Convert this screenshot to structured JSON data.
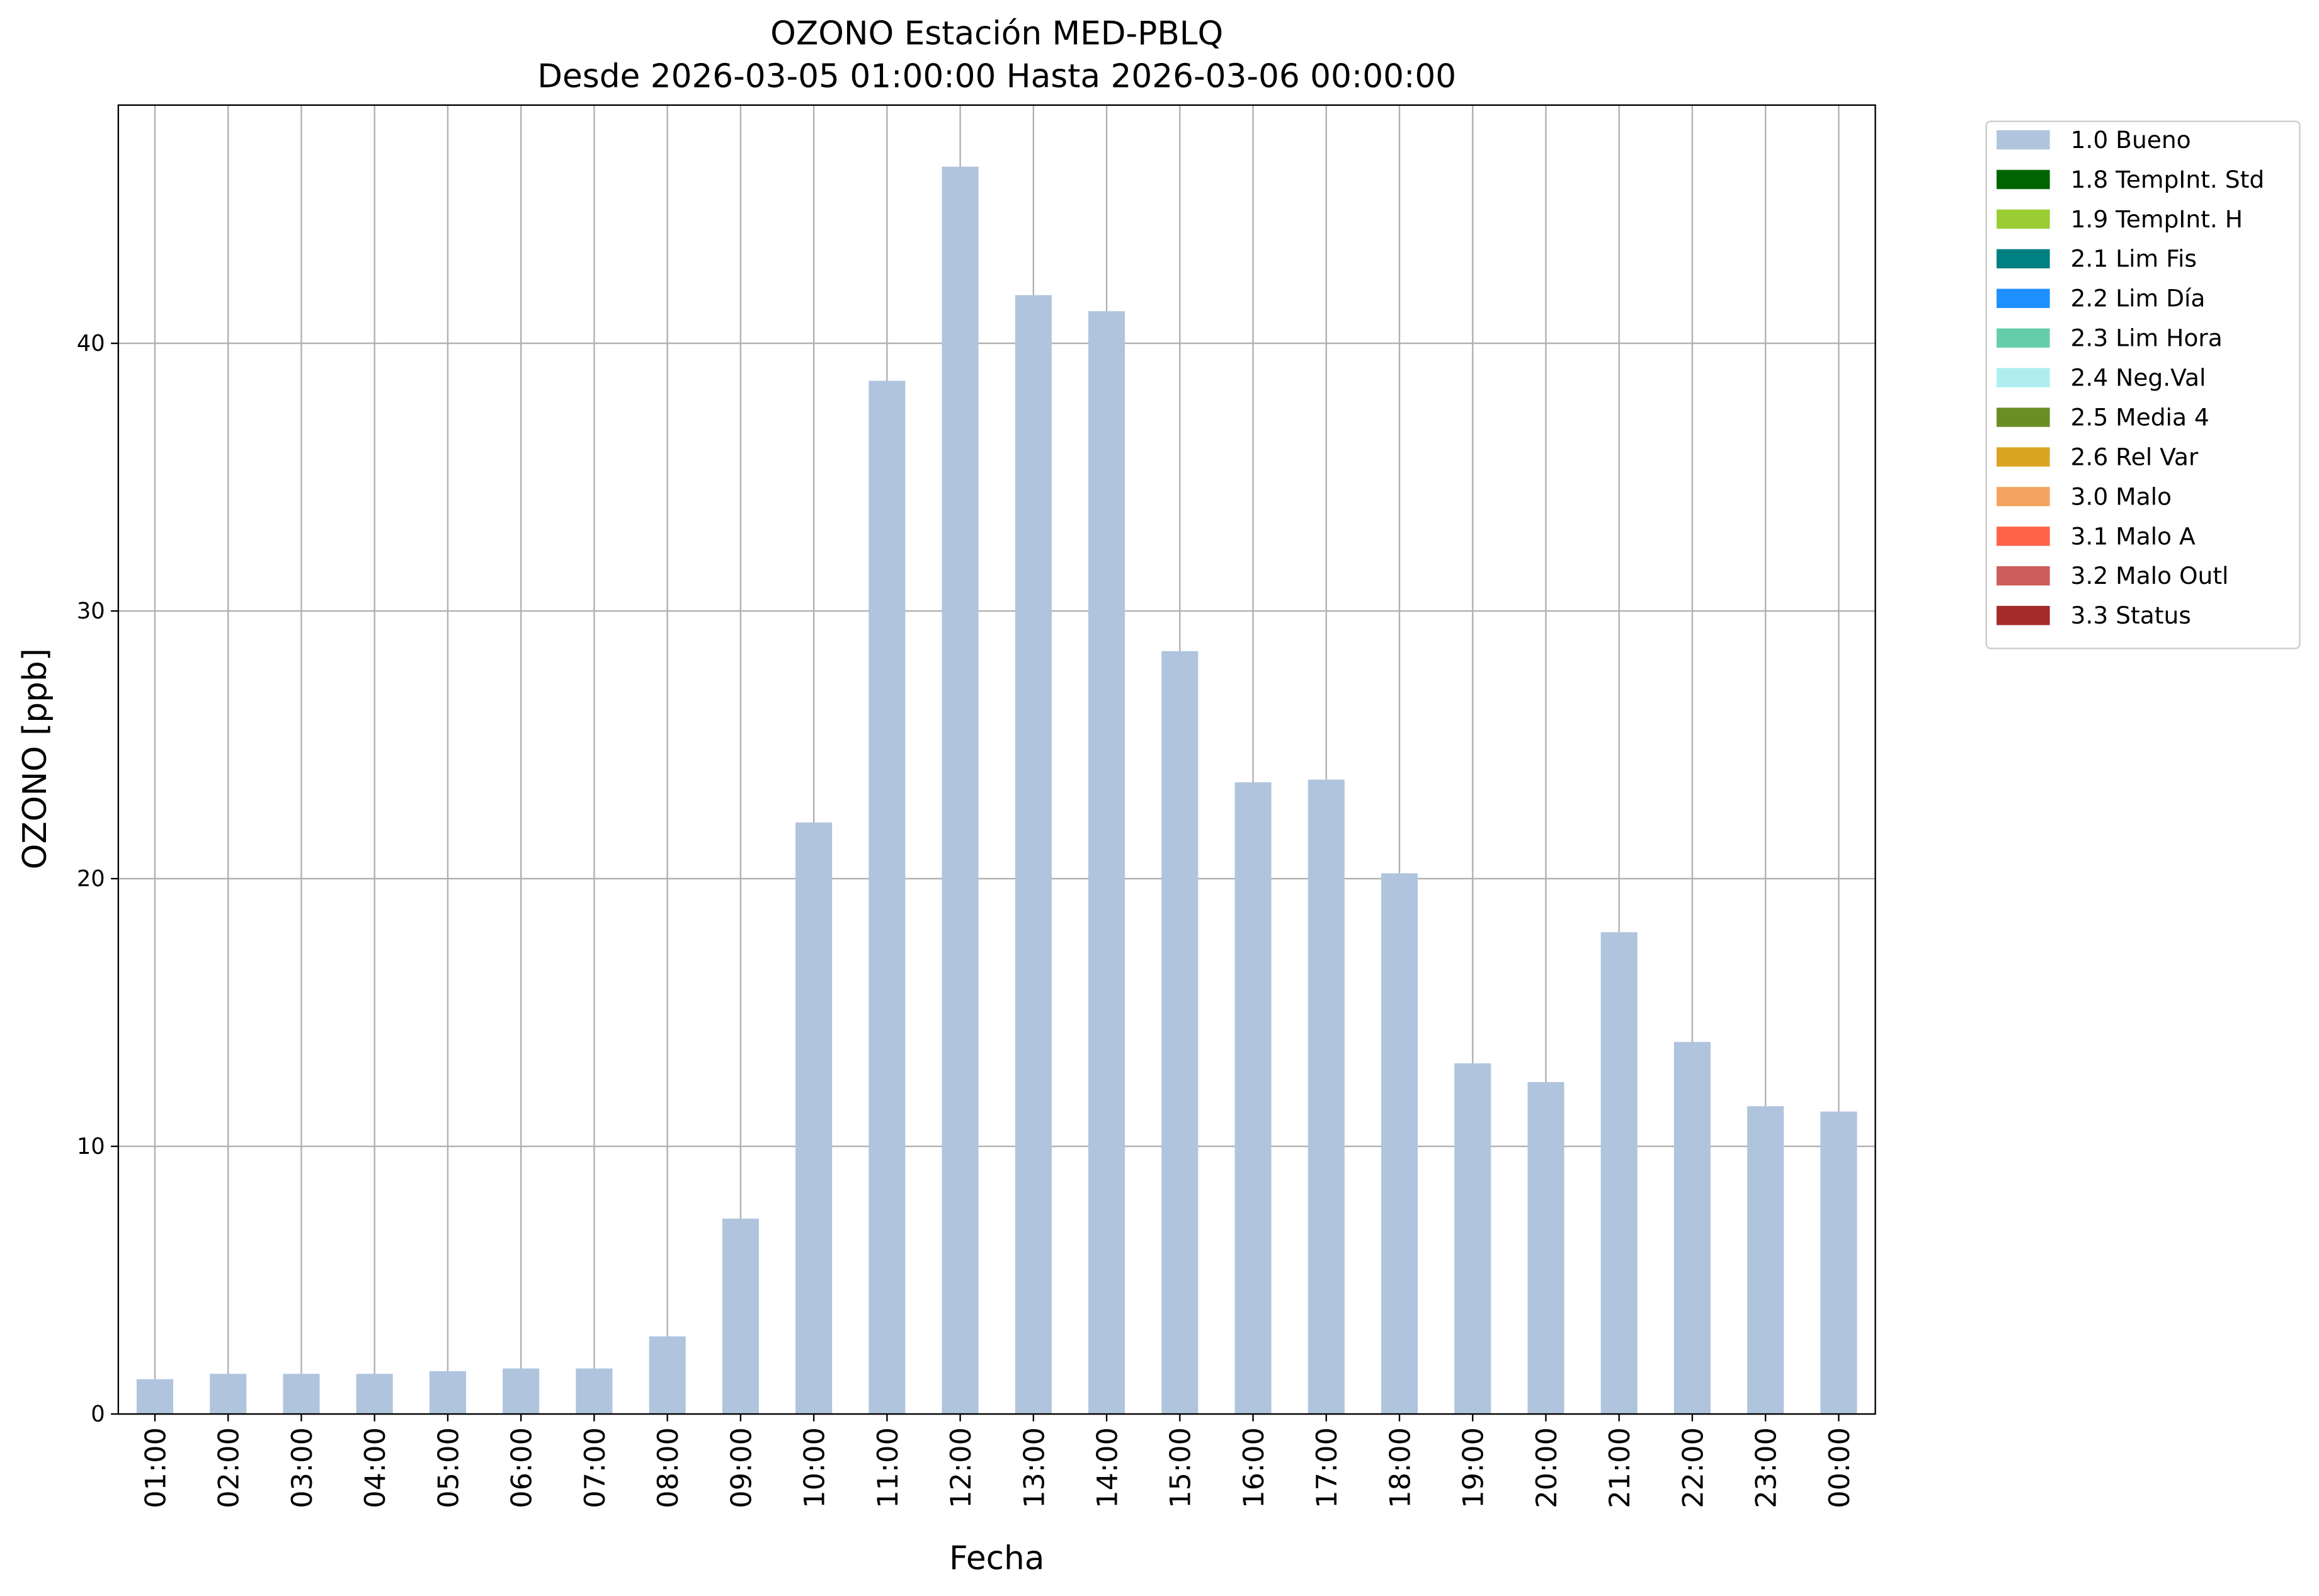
{
  "chart_data": {
    "type": "bar",
    "stacked": true,
    "title": "OZONO Estación MED-PBLQ",
    "subtitle": "Desde 2026-03-05 01:00:00 Hasta 2026-03-06 00:00:00",
    "x_label": "Fecha",
    "y_label": "OZONO [ppb]",
    "categories": [
      "01:00",
      "02:00",
      "03:00",
      "04:00",
      "05:00",
      "06:00",
      "07:00",
      "08:00",
      "09:00",
      "10:00",
      "11:00",
      "12:00",
      "13:00",
      "14:00",
      "15:00",
      "16:00",
      "17:00",
      "18:00",
      "19:00",
      "20:00",
      "21:00",
      "22:00",
      "23:00",
      "00:00"
    ],
    "series": [
      {
        "name": "1.0 Bueno",
        "color": "#b0c4de",
        "values": [
          1.3,
          1.5,
          1.5,
          1.5,
          1.6,
          1.7,
          1.7,
          2.9,
          7.3,
          22.1,
          38.6,
          46.6,
          41.8,
          41.2,
          28.5,
          23.6,
          23.7,
          20.2,
          13.1,
          12.4,
          18.0,
          13.9,
          11.5,
          11.3
        ]
      },
      {
        "name": "1.8 TempInt. Std",
        "color": "#006400",
        "values": [
          0,
          0,
          0,
          0,
          0,
          0,
          0,
          0,
          0,
          0,
          0,
          0,
          0,
          0,
          0,
          0,
          0,
          0,
          0,
          0,
          0,
          0,
          0,
          0
        ]
      },
      {
        "name": "1.9 TempInt. H",
        "color": "#9acd32",
        "values": [
          0,
          0,
          0,
          0,
          0,
          0,
          0,
          0,
          0,
          0,
          0,
          0,
          0,
          0,
          0,
          0,
          0,
          0,
          0,
          0,
          0,
          0,
          0,
          0
        ]
      },
      {
        "name": "2.1 Lim Fis",
        "color": "#008080",
        "values": [
          0,
          0,
          0,
          0,
          0,
          0,
          0,
          0,
          0,
          0,
          0,
          0,
          0,
          0,
          0,
          0,
          0,
          0,
          0,
          0,
          0,
          0,
          0,
          0
        ]
      },
      {
        "name": "2.2 Lim Día",
        "color": "#1e90ff",
        "values": [
          0,
          0,
          0,
          0,
          0,
          0,
          0,
          0,
          0,
          0,
          0,
          0,
          0,
          0,
          0,
          0,
          0,
          0,
          0,
          0,
          0,
          0,
          0,
          0
        ]
      },
      {
        "name": "2.3 Lim Hora",
        "color": "#66cdaa",
        "values": [
          0,
          0,
          0,
          0,
          0,
          0,
          0,
          0,
          0,
          0,
          0,
          0,
          0,
          0,
          0,
          0,
          0,
          0,
          0,
          0,
          0,
          0,
          0,
          0
        ]
      },
      {
        "name": "2.4 Neg.Val",
        "color": "#afeeee",
        "values": [
          0,
          0,
          0,
          0,
          0,
          0,
          0,
          0,
          0,
          0,
          0,
          0,
          0,
          0,
          0,
          0,
          0,
          0,
          0,
          0,
          0,
          0,
          0,
          0
        ]
      },
      {
        "name": "2.5 Media 4",
        "color": "#6b8e23",
        "values": [
          0,
          0,
          0,
          0,
          0,
          0,
          0,
          0,
          0,
          0,
          0,
          0,
          0,
          0,
          0,
          0,
          0,
          0,
          0,
          0,
          0,
          0,
          0,
          0
        ]
      },
      {
        "name": "2.6 Rel Var",
        "color": "#daa520",
        "values": [
          0,
          0,
          0,
          0,
          0,
          0,
          0,
          0,
          0,
          0,
          0,
          0,
          0,
          0,
          0,
          0,
          0,
          0,
          0,
          0,
          0,
          0,
          0,
          0
        ]
      },
      {
        "name": "3.0 Malo",
        "color": "#f4a460",
        "values": [
          0,
          0,
          0,
          0,
          0,
          0,
          0,
          0,
          0,
          0,
          0,
          0,
          0,
          0,
          0,
          0,
          0,
          0,
          0,
          0,
          0,
          0,
          0,
          0
        ]
      },
      {
        "name": "3.1 Malo A",
        "color": "#ff6347",
        "values": [
          0,
          0,
          0,
          0,
          0,
          0,
          0,
          0,
          0,
          0,
          0,
          0,
          0,
          0,
          0,
          0,
          0,
          0,
          0,
          0,
          0,
          0,
          0,
          0
        ]
      },
      {
        "name": "3.2 Malo Outl",
        "color": "#cd5c5c",
        "values": [
          0,
          0,
          0,
          0,
          0,
          0,
          0,
          0,
          0,
          0,
          0,
          0,
          0,
          0,
          0,
          0,
          0,
          0,
          0,
          0,
          0,
          0,
          0,
          0
        ]
      },
      {
        "name": "3.3 Status",
        "color": "#a52a2a",
        "values": [
          0,
          0,
          0,
          0,
          0,
          0,
          0,
          0,
          0,
          0,
          0,
          0,
          0,
          0,
          0,
          0,
          0,
          0,
          0,
          0,
          0,
          0,
          0,
          0
        ]
      }
    ],
    "ylim": [
      0,
      48.9
    ],
    "yticks": [
      0,
      10,
      20,
      30,
      40
    ],
    "grid": true,
    "legend": "outside-right"
  }
}
